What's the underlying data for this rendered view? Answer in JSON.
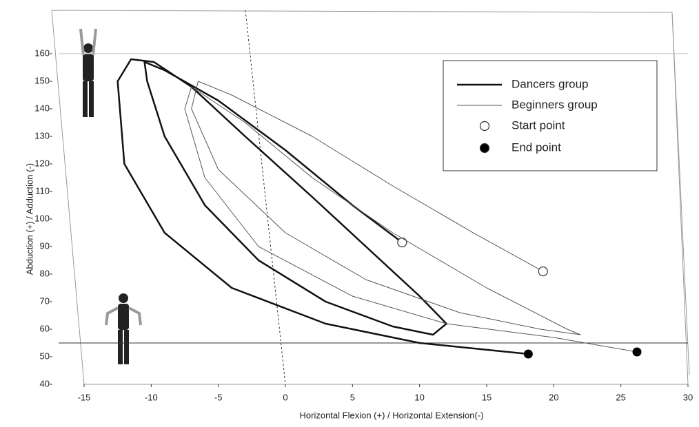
{
  "chart_data": {
    "type": "line",
    "xlabel": "Horizontal Flexion (+) / Horizontal Extension(-)",
    "ylabel": "Abduction (+) / Adduction (-)",
    "xlim": [
      -15,
      30
    ],
    "xticks": [
      -15,
      -10,
      -5,
      0,
      5,
      10,
      15,
      20,
      25,
      30
    ],
    "ylim": [
      40,
      170
    ],
    "yticks": [
      40,
      50,
      60,
      70,
      80,
      90,
      100,
      110,
      120,
      130,
      140,
      150,
      160
    ],
    "reference_lines": {
      "x": [
        0
      ],
      "y": [
        160,
        55
      ]
    },
    "series": [
      {
        "name": "Dancers group",
        "color": "#111111",
        "x": [
          8.7,
          5,
          0,
          -5,
          -9,
          -10.5,
          -10.3,
          -9,
          -6,
          -2,
          3,
          8,
          11,
          12,
          10,
          6,
          2,
          -3,
          -7,
          -9.8,
          -11.5,
          -12.5,
          -12,
          -9,
          -4,
          3,
          10,
          18.1
        ],
        "values": [
          91.5,
          105,
          125,
          143,
          154,
          157,
          150,
          130,
          105,
          85,
          70,
          61,
          58,
          62,
          72,
          90,
          108,
          130,
          148,
          157,
          158,
          150,
          120,
          95,
          75,
          62,
          55,
          51
        ]
      },
      {
        "name": "Beginners group",
        "color": "#555555",
        "x": [
          19.2,
          14,
          8,
          2,
          -4,
          -6.5,
          -7,
          -5,
          0,
          6,
          13,
          19,
          22,
          21,
          15,
          8,
          2,
          -3,
          -7,
          -7.5,
          -6,
          -2,
          5,
          12,
          20,
          26.2
        ],
        "values": [
          81,
          95,
          112,
          130,
          145,
          150,
          140,
          118,
          95,
          78,
          66,
          60,
          58,
          60,
          75,
          95,
          115,
          135,
          148,
          140,
          115,
          90,
          72,
          62,
          57,
          51.75
        ]
      }
    ],
    "markers": [
      {
        "name": "Start point"
      },
      {
        "name": "End point"
      }
    ]
  }
}
